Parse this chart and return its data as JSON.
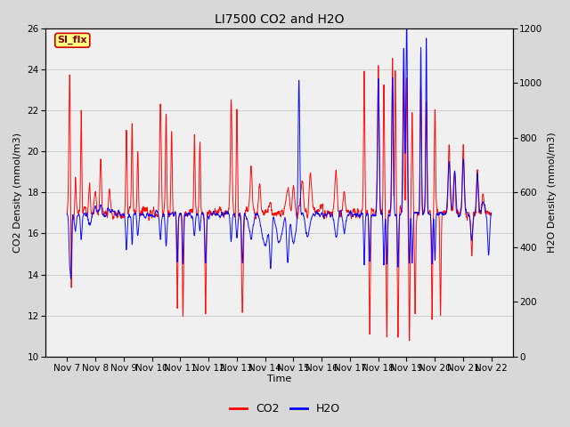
{
  "title": "LI7500 CO2 and H2O",
  "xlabel": "Time",
  "ylabel_left": "CO2 Density (mmol/m3)",
  "ylabel_right": "H2O Density (mmol/m3)",
  "ylim_left": [
    10,
    26
  ],
  "ylim_right": [
    0,
    1200
  ],
  "yticks_left": [
    10,
    12,
    14,
    16,
    18,
    20,
    22,
    24,
    26
  ],
  "yticks_right": [
    0,
    200,
    400,
    600,
    800,
    1000,
    1200
  ],
  "xtick_labels": [
    "Nov 7",
    "Nov 8",
    "Nov 9",
    "Nov 10",
    "Nov 11",
    "Nov 12",
    "Nov 13",
    "Nov 14",
    "Nov 15",
    "Nov 16",
    "Nov 17",
    "Nov 18",
    "Nov 19",
    "Nov 20",
    "Nov 21",
    "Nov 22"
  ],
  "co2_color": "#FF0000",
  "h2o_color": "#0000FF",
  "outer_bg": "#D8D8D8",
  "plot_bg_color": "#F0F0F0",
  "annotation_text": "SI_flx",
  "annotation_bg": "#FFFF80",
  "annotation_border": "#CC0000",
  "legend_co2": "CO2",
  "legend_h2o": "H2O",
  "title_fontsize": 10,
  "axis_fontsize": 8,
  "tick_fontsize": 7.5
}
